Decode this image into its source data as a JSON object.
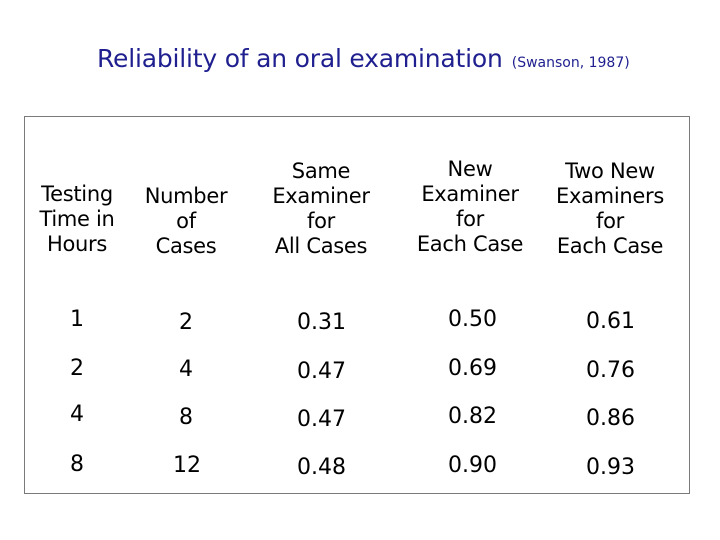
{
  "title": {
    "main": "Reliability of an oral examination",
    "citation": "(Swanson, 1987)"
  },
  "table": {
    "headers": [
      [
        "Testing",
        "Time in",
        "Hours"
      ],
      [
        "Number",
        "of",
        "Cases"
      ],
      [
        "Same",
        "Examiner",
        "for",
        "All Cases"
      ],
      [
        "New",
        "Examiner",
        "for",
        "Each Case"
      ],
      [
        "Two New",
        "Examiners",
        "for",
        "Each Case"
      ]
    ],
    "rows": [
      [
        "1",
        "2",
        "0.31",
        "0.50",
        "0.61"
      ],
      [
        "2",
        "4",
        "0.47",
        "0.69",
        "0.76"
      ],
      [
        "4",
        "8",
        "0.47",
        "0.82",
        "0.86"
      ],
      [
        "8",
        "12",
        "0.48",
        "0.90",
        "0.93"
      ]
    ]
  }
}
